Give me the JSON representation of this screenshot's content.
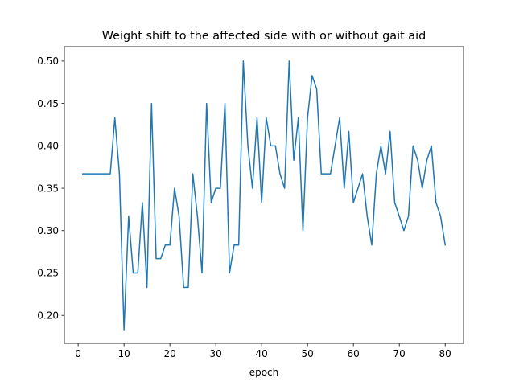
{
  "chart_data": {
    "type": "line",
    "title": "Weight shift to the affected side with or without gait aid",
    "xlabel": "epoch",
    "ylabel": "",
    "xlim": [
      -3,
      84
    ],
    "ylim": [
      0.167,
      0.517
    ],
    "xticks": [
      0,
      10,
      20,
      30,
      40,
      50,
      60,
      70,
      80
    ],
    "yticks": [
      0.2,
      0.25,
      0.3,
      0.35,
      0.4,
      0.45,
      0.5
    ],
    "grid": false,
    "color": "#1f77b4",
    "series": [
      {
        "x": [
          1,
          2,
          3,
          4,
          5,
          6,
          7,
          8,
          9,
          10,
          11,
          12,
          13,
          14,
          15,
          16,
          17,
          18,
          19,
          20,
          21,
          22,
          23,
          24,
          25,
          26,
          27,
          28,
          29,
          30,
          31,
          32,
          33,
          34,
          35,
          36,
          37,
          38,
          39,
          40,
          41,
          42,
          43,
          44,
          45,
          46,
          47,
          48,
          49,
          50,
          51,
          52,
          53,
          54,
          55,
          56,
          57,
          58,
          59,
          60,
          61,
          62,
          63,
          64,
          65,
          66,
          67,
          68,
          69,
          70,
          71,
          72,
          73,
          74,
          75,
          76,
          77,
          78,
          79,
          80
        ],
        "y": [
          0.367,
          0.367,
          0.367,
          0.367,
          0.367,
          0.367,
          0.367,
          0.433,
          0.367,
          0.183,
          0.317,
          0.25,
          0.25,
          0.333,
          0.233,
          0.45,
          0.267,
          0.267,
          0.283,
          0.283,
          0.35,
          0.317,
          0.233,
          0.233,
          0.367,
          0.317,
          0.25,
          0.45,
          0.333,
          0.35,
          0.35,
          0.45,
          0.25,
          0.283,
          0.283,
          0.5,
          0.4,
          0.35,
          0.433,
          0.333,
          0.433,
          0.4,
          0.4,
          0.367,
          0.35,
          0.5,
          0.383,
          0.433,
          0.3,
          0.433,
          0.483,
          0.467,
          0.367,
          0.367,
          0.367,
          0.4,
          0.433,
          0.35,
          0.417,
          0.333,
          0.35,
          0.367,
          0.317,
          0.283,
          0.367,
          0.4,
          0.367,
          0.417,
          0.333,
          0.317,
          0.3,
          0.317,
          0.4,
          0.383,
          0.35,
          0.383,
          0.4,
          0.333,
          0.317,
          0.283
        ]
      }
    ]
  }
}
